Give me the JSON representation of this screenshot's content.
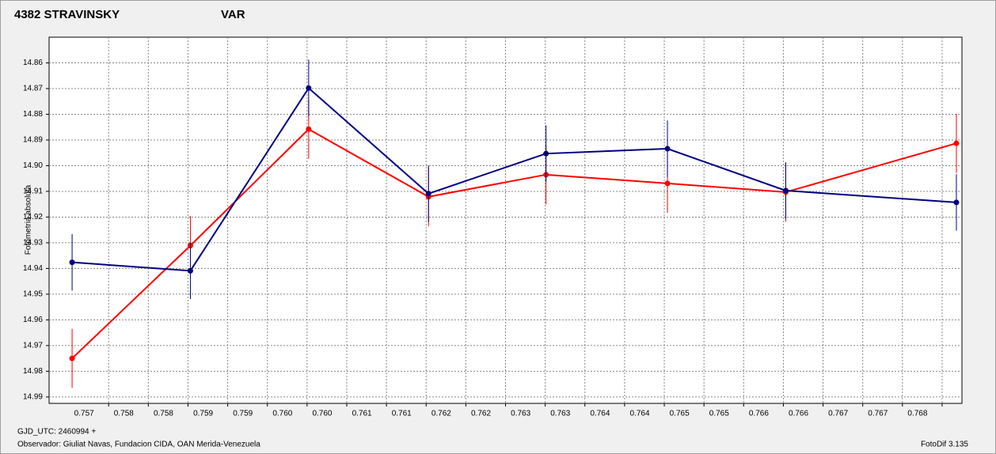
{
  "chart_data": {
    "type": "line",
    "ylabel": "Fotometria absoluta",
    "footer_left_1": "GJD_UTC: 2460994 +",
    "footer_left_2": "Observador: Giuliat Navas, Fundacion CIDA, OAN  Merida-Venezuela",
    "footer_right": "FotoDif 3.135",
    "x": [
      0.75679,
      0.75828,
      0.75977,
      0.76128,
      0.76276,
      0.76429,
      0.76578,
      0.76793
    ],
    "series": [
      {
        "name": "4382 STRAVINSKY",
        "color": "#ff0000",
        "values": [
          14.975,
          14.9311,
          14.8858,
          14.9121,
          14.9035,
          14.9069,
          14.9103,
          14.8913
        ],
        "errors": [
          0.0115,
          0.0115,
          0.0115,
          0.0115,
          0.0115,
          0.0115,
          0.0115,
          0.0115
        ]
      },
      {
        "name": "VAR",
        "color": "#000080",
        "values": [
          14.9376,
          14.9409,
          14.8698,
          14.9109,
          14.8953,
          14.8934,
          14.9097,
          14.9143
        ],
        "errors": [
          0.011,
          0.011,
          0.011,
          0.011,
          0.011,
          0.011,
          0.011,
          0.011
        ]
      }
    ],
    "xlim": [
      0.7565,
      0.768
    ],
    "ylim": [
      14.85,
      14.9925
    ],
    "y_inverted": true,
    "grid": true,
    "xticks": [
      {
        "value": 0.75725,
        "label": "0.757"
      },
      {
        "value": 0.75775,
        "label": "0.758"
      },
      {
        "value": 0.75825,
        "label": "0.758"
      },
      {
        "value": 0.75875,
        "label": "0.759"
      },
      {
        "value": 0.75925,
        "label": "0.759"
      },
      {
        "value": 0.75975,
        "label": "0.760"
      },
      {
        "value": 0.76025,
        "label": "0.760"
      },
      {
        "value": 0.76075,
        "label": "0.761"
      },
      {
        "value": 0.76125,
        "label": "0.761"
      },
      {
        "value": 0.76175,
        "label": "0.762"
      },
      {
        "value": 0.76225,
        "label": "0.762"
      },
      {
        "value": 0.76275,
        "label": "0.763"
      },
      {
        "value": 0.76325,
        "label": "0.763"
      },
      {
        "value": 0.76375,
        "label": "0.764"
      },
      {
        "value": 0.76425,
        "label": "0.764"
      },
      {
        "value": 0.76475,
        "label": "0.765"
      },
      {
        "value": 0.76525,
        "label": "0.765"
      },
      {
        "value": 0.76575,
        "label": "0.766"
      },
      {
        "value": 0.76625,
        "label": "0.766"
      },
      {
        "value": 0.76675,
        "label": "0.767"
      },
      {
        "value": 0.76725,
        "label": "0.767"
      },
      {
        "value": 0.76775,
        "label": "0.768"
      }
    ],
    "yticks": [
      14.86,
      14.87,
      14.88,
      14.89,
      {
        "value": 14.9,
        "label": "14.90"
      },
      14.91,
      14.92,
      14.93,
      14.94,
      14.95,
      14.96,
      14.97,
      14.98,
      14.99
    ]
  }
}
